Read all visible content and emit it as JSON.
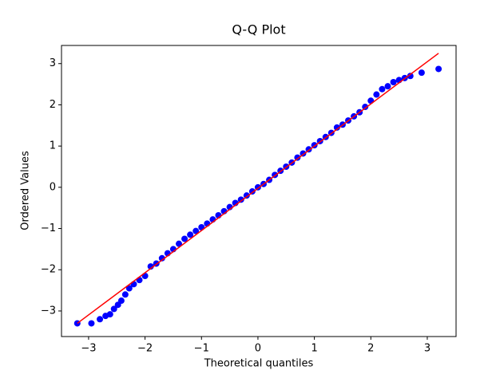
{
  "chart_data": {
    "type": "scatter",
    "title": "Q-Q Plot",
    "x_label": "Theoretical quantiles",
    "y_label": "Ordered Values",
    "xlim": [
      -3.48,
      3.51
    ],
    "ylim": [
      -3.62,
      3.44
    ],
    "xticks": [
      {
        "value": -3,
        "label": "−3"
      },
      {
        "value": -2,
        "label": "−2"
      },
      {
        "value": -1,
        "label": "−1"
      },
      0,
      1,
      2,
      3
    ],
    "yticks": [
      {
        "value": -3,
        "label": "−3"
      },
      {
        "value": -2,
        "label": "−2"
      },
      {
        "value": -1,
        "label": "−1"
      },
      0,
      1,
      2,
      3
    ],
    "series": [
      {
        "type": "scatter",
        "color": "#0000ff",
        "x": [
          -3.2,
          -2.95,
          -2.8,
          -2.7,
          -2.62,
          -2.55,
          -2.48,
          -2.42,
          -2.35,
          -2.28,
          -2.2,
          -2.1,
          -2.0,
          -1.9,
          -1.8,
          -1.7,
          -1.6,
          -1.5,
          -1.4,
          -1.3,
          -1.2,
          -1.1,
          -1.0,
          -0.9,
          -0.8,
          -0.7,
          -0.6,
          -0.5,
          -0.4,
          -0.3,
          -0.2,
          -0.1,
          0.0,
          0.1,
          0.2,
          0.3,
          0.4,
          0.5,
          0.6,
          0.7,
          0.8,
          0.9,
          1.0,
          1.1,
          1.2,
          1.3,
          1.4,
          1.5,
          1.6,
          1.7,
          1.8,
          1.9,
          2.0,
          2.1,
          2.2,
          2.3,
          2.4,
          2.5,
          2.6,
          2.7,
          2.9,
          3.2
        ],
        "values": [
          -3.3,
          -3.3,
          -3.2,
          -3.12,
          -3.08,
          -2.95,
          -2.85,
          -2.75,
          -2.6,
          -2.45,
          -2.35,
          -2.25,
          -2.15,
          -1.92,
          -1.85,
          -1.72,
          -1.6,
          -1.5,
          -1.37,
          -1.25,
          -1.15,
          -1.06,
          -0.97,
          -0.88,
          -0.78,
          -0.68,
          -0.58,
          -0.48,
          -0.38,
          -0.3,
          -0.2,
          -0.1,
          0.0,
          0.08,
          0.18,
          0.3,
          0.4,
          0.5,
          0.6,
          0.72,
          0.82,
          0.92,
          1.02,
          1.12,
          1.22,
          1.32,
          1.45,
          1.52,
          1.62,
          1.72,
          1.82,
          1.95,
          2.1,
          2.25,
          2.38,
          2.45,
          2.55,
          2.6,
          2.65,
          2.7,
          2.78,
          2.87
        ]
      },
      {
        "type": "line",
        "color": "#ff0000",
        "x": [
          -3.2,
          3.2
        ],
        "values": [
          -3.3,
          3.25
        ]
      }
    ]
  }
}
